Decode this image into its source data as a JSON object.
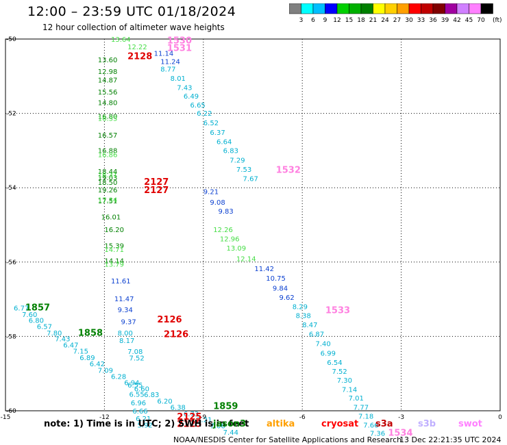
{
  "title": "12:00 – 23:59 UTC 01/18/2024",
  "subtitle": "12 hour collection of altimeter wave heights",
  "colorbar": {
    "colors": [
      "#808080",
      "#00ffff",
      "#00bfff",
      "#0000ff",
      "#00d000",
      "#00b000",
      "#008000",
      "#ffff00",
      "#ffd000",
      "#ffa000",
      "#ff0000",
      "#c00000",
      "#800000",
      "#a000a0",
      "#d080ff",
      "#ff80ff",
      "#000000"
    ],
    "labels": [
      "3",
      "6",
      "9",
      "12",
      "15",
      "18",
      "21",
      "24",
      "27",
      "30",
      "33",
      "36",
      "39",
      "42",
      "45",
      "70"
    ],
    "unit": "(ft)"
  },
  "footer": {
    "note": "note:  1) Time is in UTC;  2) SWH is in feet",
    "credit": "NOAA/NESDIS Center for Satellite Applications and Research",
    "timestamp": "13 Dec 22:21:35 UTC 2024"
  },
  "legend": [
    {
      "name": "jason3",
      "color": "#008000"
    },
    {
      "name": "altika",
      "color": "#ffa000"
    },
    {
      "name": "cryosat",
      "color": "#ff0000"
    },
    {
      "name": "s3a",
      "color": "#c00000"
    },
    {
      "name": "s3b",
      "color": "#c0b0ff"
    },
    {
      "name": "swot",
      "color": "#ff80ff"
    }
  ],
  "chart_data": {
    "type": "scatter",
    "title": "12:00 – 23:59 UTC 01/18/2024",
    "xlim": [
      -15,
      0
    ],
    "ylim": [
      -60,
      -50
    ],
    "x_ticks": [
      "-15",
      "-12",
      "-9",
      "-6",
      "-3",
      "0"
    ],
    "y_ticks": [
      "-50",
      "-52",
      "-54",
      "-56",
      "-58",
      "-60"
    ],
    "grid": true,
    "series": [
      {
        "name": "jason3",
        "color": "#008000",
        "points": [
          {
            "x": -12.2,
            "y": -50.55,
            "label": "13.60"
          },
          {
            "x": -12.2,
            "y": -50.87,
            "label": "12.98"
          },
          {
            "x": -12.2,
            "y": -51.1,
            "label": "14.87"
          },
          {
            "x": -12.2,
            "y": -51.42,
            "label": "15.56"
          },
          {
            "x": -12.2,
            "y": -51.7,
            "label": "14.80"
          },
          {
            "x": -12.2,
            "y": -52.07,
            "label": "16.80"
          },
          {
            "x": -12.2,
            "y": -52.58,
            "label": "16.57"
          },
          {
            "x": -12.2,
            "y": -52.99,
            "label": "16.88"
          },
          {
            "x": -12.2,
            "y": -53.55,
            "label": "18.44"
          },
          {
            "x": -12.2,
            "y": -53.72,
            "label": "19.03"
          },
          {
            "x": -12.2,
            "y": -53.85,
            "label": "18.50"
          },
          {
            "x": -12.2,
            "y": -54.05,
            "label": "19.26"
          },
          {
            "x": -12.2,
            "y": -54.35,
            "label": "17.51"
          },
          {
            "x": -12.1,
            "y": -54.78,
            "label": "16.01"
          },
          {
            "x": -12.0,
            "y": -55.12,
            "label": "16.20"
          },
          {
            "x": -12.0,
            "y": -55.55,
            "label": "15.39"
          },
          {
            "x": -12.0,
            "y": -55.96,
            "label": "14.14"
          },
          {
            "x": -14.4,
            "y": -57.23,
            "label": "1857"
          },
          {
            "x": -12.8,
            "y": -57.91,
            "label": "1858"
          },
          {
            "x": -8.7,
            "y": -59.88,
            "label": "1859"
          }
        ]
      },
      {
        "name": "s3b",
        "color": "#0a3fd0",
        "points": [
          {
            "x": -10.5,
            "y": -50.38,
            "label": "11.14"
          },
          {
            "x": -10.3,
            "y": -50.6,
            "label": "11.24"
          },
          {
            "x": -11.8,
            "y": -56.5,
            "label": "11.61"
          },
          {
            "x": -11.7,
            "y": -56.98,
            "label": "11.47"
          },
          {
            "x": -11.6,
            "y": -57.27,
            "label": "9.34"
          },
          {
            "x": -11.5,
            "y": -57.6,
            "label": "9.37"
          },
          {
            "x": -9.0,
            "y": -54.1,
            "label": "9.21"
          },
          {
            "x": -8.8,
            "y": -54.38,
            "label": "9.08"
          },
          {
            "x": -8.55,
            "y": -54.62,
            "label": "9.83"
          },
          {
            "x": -7.45,
            "y": -56.17,
            "label": "11.42"
          },
          {
            "x": -7.1,
            "y": -56.43,
            "label": "10.75"
          },
          {
            "x": -6.9,
            "y": -56.69,
            "label": "9.84"
          },
          {
            "x": -6.7,
            "y": -56.94,
            "label": "9.62"
          }
        ]
      },
      {
        "name": "s3a",
        "color": "#00b0d0",
        "points": [
          {
            "x": -10.3,
            "y": -50.8,
            "label": "8.77"
          },
          {
            "x": -10.0,
            "y": -51.05,
            "label": "8.01"
          },
          {
            "x": -9.8,
            "y": -51.3,
            "label": "7.43"
          },
          {
            "x": -9.6,
            "y": -51.53,
            "label": "6.49"
          },
          {
            "x": -9.4,
            "y": -51.77,
            "label": "6.65"
          },
          {
            "x": -9.2,
            "y": -51.99,
            "label": "6.22"
          },
          {
            "x": -9.0,
            "y": -52.25,
            "label": "6.52"
          },
          {
            "x": -8.8,
            "y": -52.5,
            "label": "6.37"
          },
          {
            "x": -8.6,
            "y": -52.75,
            "label": "6.64"
          },
          {
            "x": -8.4,
            "y": -52.99,
            "label": "6.83"
          },
          {
            "x": -8.2,
            "y": -53.25,
            "label": "7.29"
          },
          {
            "x": -8.0,
            "y": -53.5,
            "label": "7.53"
          },
          {
            "x": -7.8,
            "y": -53.75,
            "label": "7.67"
          },
          {
            "x": -6.3,
            "y": -57.19,
            "label": "8.29"
          },
          {
            "x": -6.2,
            "y": -57.43,
            "label": "8.38"
          },
          {
            "x": -6.0,
            "y": -57.68,
            "label": "8.47"
          },
          {
            "x": -5.8,
            "y": -57.93,
            "label": "6.87"
          },
          {
            "x": -5.6,
            "y": -58.19,
            "label": "7.40"
          },
          {
            "x": -5.45,
            "y": -58.44,
            "label": "6.99"
          },
          {
            "x": -5.25,
            "y": -58.69,
            "label": "6.54"
          },
          {
            "x": -5.1,
            "y": -58.93,
            "label": "7.52"
          },
          {
            "x": -4.95,
            "y": -59.17,
            "label": "7.30"
          },
          {
            "x": -4.8,
            "y": -59.42,
            "label": "7.14"
          },
          {
            "x": -4.6,
            "y": -59.65,
            "label": "7.01"
          },
          {
            "x": -4.45,
            "y": -59.9,
            "label": "7.77"
          },
          {
            "x": -4.3,
            "y": -60.14,
            "label": "7.18"
          },
          {
            "x": -4.15,
            "y": -60.38,
            "label": "7.66"
          },
          {
            "x": -3.95,
            "y": -60.6,
            "label": "7.36"
          },
          {
            "x": -14.75,
            "y": -57.23,
            "label": "6.77"
          },
          {
            "x": -14.5,
            "y": -57.4,
            "label": "7.60"
          },
          {
            "x": -14.3,
            "y": -57.56,
            "label": "6.80"
          },
          {
            "x": -14.05,
            "y": -57.73,
            "label": "6.57"
          },
          {
            "x": -13.75,
            "y": -57.9,
            "label": "7.80"
          },
          {
            "x": -13.5,
            "y": -58.06,
            "label": "7.43"
          },
          {
            "x": -13.25,
            "y": -58.22,
            "label": "6.47"
          },
          {
            "x": -12.95,
            "y": -58.39,
            "label": "7.15"
          },
          {
            "x": -12.75,
            "y": -58.56,
            "label": "6.89"
          },
          {
            "x": -12.45,
            "y": -58.73,
            "label": "6.42"
          },
          {
            "x": -12.2,
            "y": -58.9,
            "label": "7.09"
          },
          {
            "x": -11.8,
            "y": -59.07,
            "label": "6.28"
          },
          {
            "x": -11.4,
            "y": -59.24,
            "label": "6.94"
          },
          {
            "x": -11.1,
            "y": -59.4,
            "label": "6.60"
          },
          {
            "x": -10.8,
            "y": -59.56,
            "label": "6.83"
          },
          {
            "x": -10.4,
            "y": -59.73,
            "label": "6.20"
          },
          {
            "x": -10.0,
            "y": -59.9,
            "label": "6.38"
          },
          {
            "x": -9.6,
            "y": -60.07,
            "label": "6.73"
          },
          {
            "x": -9.2,
            "y": -60.23,
            "label": "7.21"
          },
          {
            "x": -8.8,
            "y": -60.4,
            "label": "7.06"
          },
          {
            "x": -8.4,
            "y": -60.57,
            "label": "7.44"
          },
          {
            "x": -11.6,
            "y": -57.9,
            "label": "8.00"
          },
          {
            "x": -11.55,
            "y": -58.1,
            "label": "8.17"
          },
          {
            "x": -11.3,
            "y": -58.4,
            "label": "7.08"
          },
          {
            "x": -11.25,
            "y": -58.57,
            "label": "7.52"
          },
          {
            "x": -11.3,
            "y": -59.3,
            "label": "6.55"
          },
          {
            "x": -11.25,
            "y": -59.55,
            "label": "6.55"
          },
          {
            "x": -11.2,
            "y": -59.78,
            "label": "6.96"
          },
          {
            "x": -11.15,
            "y": -60.0,
            "label": "6.66"
          },
          {
            "x": -11.05,
            "y": -60.2,
            "label": "6.21"
          },
          {
            "x": -11.0,
            "y": -60.38,
            "label": "5.92"
          }
        ]
      },
      {
        "name": "altika",
        "color": "#44dd44",
        "points": [
          {
            "x": -11.8,
            "y": -50.0,
            "label": "13.64"
          },
          {
            "x": -11.3,
            "y": -50.2,
            "label": "12.22"
          },
          {
            "x": -8.7,
            "y": -55.12,
            "label": "12.26"
          },
          {
            "x": -8.5,
            "y": -55.37,
            "label": "12.96"
          },
          {
            "x": -8.3,
            "y": -55.62,
            "label": "13.09"
          },
          {
            "x": -8.0,
            "y": -55.9,
            "label": "12.14"
          },
          {
            "x": -12.0,
            "y": -55.65,
            "label": "14.71"
          },
          {
            "x": -12.0,
            "y": -56.05,
            "label": "13.79"
          },
          {
            "x": -12.2,
            "y": -54.32,
            "label": "17.34"
          },
          {
            "x": -12.2,
            "y": -53.65,
            "label": "16.31"
          },
          {
            "x": -12.2,
            "y": -53.1,
            "label": "16.86"
          },
          {
            "x": -12.2,
            "y": -52.13,
            "label": "16.33"
          }
        ]
      },
      {
        "name": "cryosat",
        "color": "#e00000",
        "points": [
          {
            "x": -11.3,
            "y": -50.47,
            "label": "2128"
          },
          {
            "x": -10.8,
            "y": -53.85,
            "label": "2127"
          },
          {
            "x": -10.8,
            "y": -54.07,
            "label": "2127"
          },
          {
            "x": -10.4,
            "y": -57.55,
            "label": "2126"
          },
          {
            "x": -10.2,
            "y": -57.95,
            "label": "2126"
          },
          {
            "x": -9.8,
            "y": -60.17,
            "label": "2125"
          },
          {
            "x": -9.8,
            "y": -60.36,
            "label": "2125"
          }
        ]
      },
      {
        "name": "swot",
        "color": "#ff80e0",
        "points": [
          {
            "x": -10.1,
            "y": -50.05,
            "label": "1530"
          },
          {
            "x": -10.1,
            "y": -50.25,
            "label": "1531"
          },
          {
            "x": -6.8,
            "y": -53.53,
            "label": "1532"
          },
          {
            "x": -5.3,
            "y": -57.3,
            "label": "1533"
          },
          {
            "x": -3.4,
            "y": -60.6,
            "label": "1534"
          }
        ]
      }
    ]
  }
}
